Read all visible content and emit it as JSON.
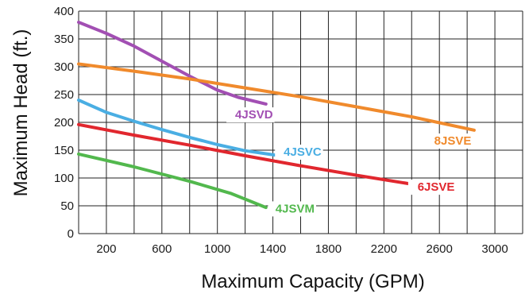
{
  "chart_data": {
    "type": "line",
    "title": "",
    "xlabel": "Maximum Capacity (GPM)",
    "ylabel": "Maximum Head (ft.)",
    "xlim": [
      0,
      3200
    ],
    "ylim": [
      0,
      400
    ],
    "x_ticks": [
      200,
      600,
      1000,
      1400,
      1800,
      2200,
      2600,
      3000
    ],
    "y_ticks": [
      0,
      50,
      100,
      150,
      200,
      250,
      300,
      350,
      400
    ],
    "x_grid_step": 200,
    "grid": true,
    "legend": "inline labels at line ends",
    "series": [
      {
        "name": "4JSVD",
        "color": "#a24fb3",
        "points": [
          [
            0,
            380
          ],
          [
            200,
            360
          ],
          [
            400,
            337
          ],
          [
            600,
            310
          ],
          [
            800,
            283
          ],
          [
            1000,
            258
          ],
          [
            1150,
            245
          ],
          [
            1350,
            233
          ]
        ]
      },
      {
        "name": "8JSVE",
        "color": "#f08a2c",
        "points": [
          [
            0,
            305
          ],
          [
            400,
            292
          ],
          [
            800,
            278
          ],
          [
            1200,
            262
          ],
          [
            1600,
            246
          ],
          [
            2000,
            228
          ],
          [
            2400,
            210
          ],
          [
            2850,
            186
          ]
        ]
      },
      {
        "name": "4JSVC",
        "color": "#4aaee3",
        "points": [
          [
            0,
            240
          ],
          [
            200,
            218
          ],
          [
            400,
            202
          ],
          [
            600,
            187
          ],
          [
            800,
            173
          ],
          [
            1000,
            160
          ],
          [
            1200,
            149
          ],
          [
            1450,
            140
          ]
        ]
      },
      {
        "name": "6JSVE",
        "color": "#e1272e",
        "points": [
          [
            0,
            196
          ],
          [
            400,
            177
          ],
          [
            800,
            159
          ],
          [
            1200,
            140
          ],
          [
            1600,
            122
          ],
          [
            2000,
            105
          ],
          [
            2450,
            87
          ]
        ]
      },
      {
        "name": "4JSVM",
        "color": "#52b84d",
        "points": [
          [
            0,
            143
          ],
          [
            400,
            120
          ],
          [
            800,
            94
          ],
          [
            1100,
            72
          ],
          [
            1350,
            47
          ]
        ]
      }
    ]
  }
}
